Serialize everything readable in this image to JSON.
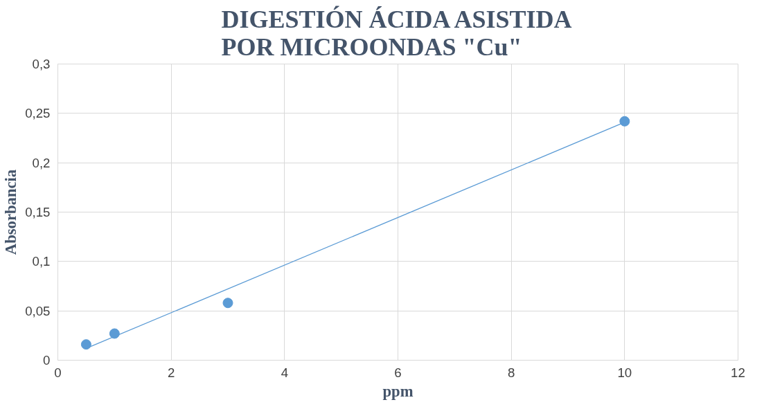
{
  "chart_data": {
    "type": "scatter",
    "title": "DIGESTIÓN ÁCIDA ASISTIDA POR MICROONDAS \"Cu\"",
    "xlabel": "ppm",
    "ylabel": "Absorbancia",
    "series": [
      {
        "color": "#5b9bd5",
        "x": [
          0.5,
          1,
          3,
          10
        ],
        "values": [
          0.016,
          0.027,
          0.058,
          0.242
        ],
        "marker": "circle"
      },
      {
        "type": "line",
        "color": "#5b9bd5",
        "x": [
          0.5,
          10
        ],
        "values": [
          0.012,
          0.241
        ],
        "line_style": "solid"
      }
    ],
    "xlim": [
      0,
      12
    ],
    "xticks": [
      0,
      2,
      4,
      6,
      8,
      10,
      12
    ],
    "ylim": [
      0,
      0.3
    ],
    "yticks": [
      0,
      {
        "value": 0.05,
        "label": "0,05"
      },
      {
        "value": 0.1,
        "label": "0,1"
      },
      {
        "value": 0.15,
        "label": "0,15"
      },
      {
        "value": 0.2,
        "label": "0,2"
      },
      {
        "value": 0.25,
        "label": "0,25"
      },
      {
        "value": 0.3,
        "label": "0,3"
      }
    ],
    "grid": true
  }
}
